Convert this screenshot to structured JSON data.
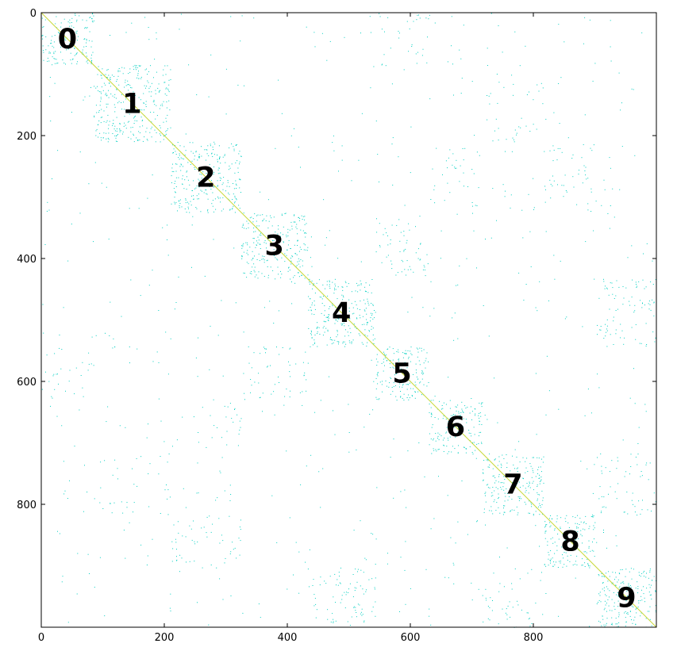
{
  "chart_data": {
    "type": "heatmap",
    "title": "",
    "xlabel": "",
    "ylabel": "",
    "xlim": [
      0,
      1000
    ],
    "ylim": [
      1000,
      0
    ],
    "x_ticks": [
      0,
      200,
      400,
      600,
      800
    ],
    "y_ticks": [
      0,
      200,
      400,
      600,
      800
    ],
    "grid": false,
    "point_color": "#00cfc1",
    "diagonal_color": "#c8d83a",
    "clusters": [
      {
        "label": "0",
        "start": 0,
        "end": 85
      },
      {
        "label": "1",
        "start": 85,
        "end": 210
      },
      {
        "label": "2",
        "start": 210,
        "end": 325
      },
      {
        "label": "3",
        "start": 325,
        "end": 433
      },
      {
        "label": "4",
        "start": 433,
        "end": 543
      },
      {
        "label": "5",
        "start": 543,
        "end": 630
      },
      {
        "label": "6",
        "start": 630,
        "end": 717
      },
      {
        "label": "7",
        "start": 717,
        "end": 817
      },
      {
        "label": "8",
        "start": 817,
        "end": 903
      },
      {
        "label": "9",
        "start": 903,
        "end": 1000
      }
    ],
    "within_cluster_density": 0.18,
    "cross_cluster_pairs": [
      {
        "a": 4,
        "b": 9,
        "density": 0.07
      },
      {
        "a": 3,
        "b": 5,
        "density": 0.05
      },
      {
        "a": 2,
        "b": 8,
        "density": 0.04
      },
      {
        "a": 7,
        "b": 9,
        "density": 0.04
      },
      {
        "a": 0,
        "b": 5,
        "density": 0.03
      },
      {
        "a": 1,
        "b": 7,
        "density": 0.025
      },
      {
        "a": 2,
        "b": 6,
        "density": 0.025
      }
    ],
    "background_density": 0.006
  }
}
